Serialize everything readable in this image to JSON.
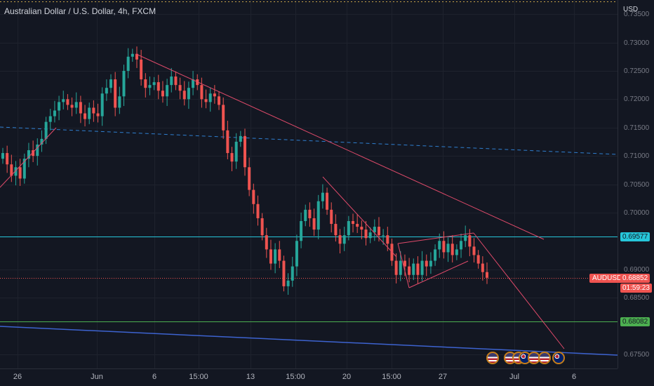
{
  "header": {
    "title": "Australian Dollar / U.S. Dollar, 4h, FXCM",
    "currency": "USD"
  },
  "y_axis": {
    "ticks": [
      {
        "label": "0.73500",
        "value": 0.735
      },
      {
        "label": "0.73000",
        "value": 0.73
      },
      {
        "label": "0.72500",
        "value": 0.725
      },
      {
        "label": "0.72000",
        "value": 0.72
      },
      {
        "label": "0.71500",
        "value": 0.715
      },
      {
        "label": "0.71000",
        "value": 0.71
      },
      {
        "label": "0.70500",
        "value": 0.705
      },
      {
        "label": "0.70000",
        "value": 0.7
      },
      {
        "label": "0.69000",
        "value": 0.69
      },
      {
        "label": "0.68500",
        "value": 0.685
      },
      {
        "label": "0.67500",
        "value": 0.675
      }
    ]
  },
  "x_axis": {
    "ticks": [
      "26",
      "Jun",
      "6",
      "15:00",
      "13",
      "15:00",
      "20",
      "15:00",
      "27",
      "Jul",
      "6"
    ]
  },
  "price_labels": {
    "resistance": {
      "label": "0.69577",
      "value": 0.69577,
      "color": "#26c6da"
    },
    "support": {
      "label": "0.68082",
      "value": 0.68082,
      "color": "#4caf50"
    },
    "symbol": "AUDUSD",
    "last_price": "0.68852",
    "last_value": 0.68852,
    "countdown": "01:59:23"
  },
  "colors": {
    "up": "#26a69a",
    "down": "#ef5350",
    "trendline": "#e04a6a",
    "dashed": "#2f7fd0",
    "blue_line": "#3d63d0",
    "hline_cyan": "#26c6da",
    "hline_green": "#4caf50"
  },
  "events": {
    "icons": [
      "us-flag-icon",
      "us-flag-icon",
      "us-flag-icon",
      "au-flag-icon",
      "us-flag-icon",
      "us-flag-icon",
      "au-flag-icon"
    ]
  },
  "chart_data": {
    "type": "candlestick",
    "title": "Australian Dollar / U.S. Dollar, 4h, FXCM",
    "ylim": [
      0.6725,
      0.7375
    ],
    "closes": [
      0.7105,
      0.7085,
      0.7065,
      0.708,
      0.706,
      0.7095,
      0.711,
      0.71,
      0.712,
      0.713,
      0.716,
      0.717,
      0.718,
      0.7195,
      0.72,
      0.719,
      0.7185,
      0.7195,
      0.7175,
      0.7165,
      0.7185,
      0.7175,
      0.717,
      0.721,
      0.722,
      0.7235,
      0.7185,
      0.7205,
      0.725,
      0.7275,
      0.728,
      0.727,
      0.7235,
      0.722,
      0.7225,
      0.723,
      0.7215,
      0.7205,
      0.7225,
      0.724,
      0.7225,
      0.7215,
      0.72,
      0.722,
      0.7235,
      0.7225,
      0.72,
      0.7195,
      0.721,
      0.7205,
      0.719,
      0.7145,
      0.7105,
      0.709,
      0.7125,
      0.7135,
      0.708,
      0.704,
      0.7015,
      0.699,
      0.696,
      0.6935,
      0.691,
      0.6935,
      0.6915,
      0.687,
      0.688,
      0.6905,
      0.695,
      0.6985,
      0.7005,
      0.699,
      0.697,
      0.702,
      0.7035,
      0.7005,
      0.698,
      0.696,
      0.6945,
      0.696,
      0.6985,
      0.698,
      0.6975,
      0.697,
      0.6955,
      0.6965,
      0.6975,
      0.696,
      0.696,
      0.6945,
      0.6915,
      0.689,
      0.6915,
      0.6905,
      0.689,
      0.691,
      0.689,
      0.6915,
      0.6905,
      0.6915,
      0.6935,
      0.695,
      0.693,
      0.6945,
      0.6925,
      0.6935,
      0.695,
      0.696,
      0.694,
      0.6925,
      0.691,
      0.6895,
      0.6885
    ]
  }
}
